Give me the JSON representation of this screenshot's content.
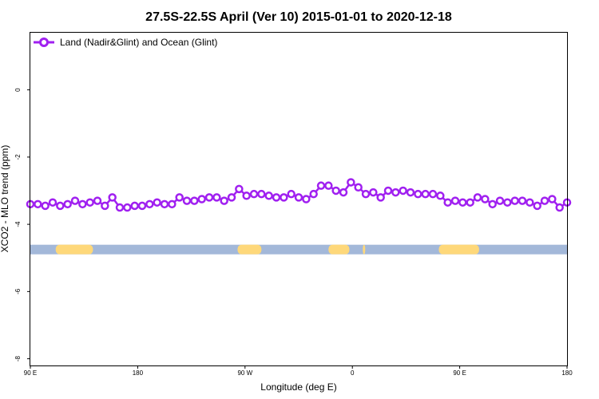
{
  "chart_data": {
    "type": "line",
    "title": "27.5S-22.5S April (Ver 10)   2015-01-01 to 2020-12-18",
    "xlabel": "Longitude (deg E)",
    "ylabel": "XCO2 - MLO trend (ppm)",
    "xlim": [
      90,
      450
    ],
    "ylim": [
      -8.2,
      1.7
    ],
    "x_ticks": [
      {
        "value": 90,
        "label": "90 E"
      },
      {
        "value": 162,
        "label": "180"
      },
      {
        "value": 234,
        "label": "90 W"
      },
      {
        "value": 306,
        "label": "0"
      },
      {
        "value": 378,
        "label": "90 E"
      },
      {
        "value": 450,
        "label": "180"
      }
    ],
    "y_ticks": [
      {
        "value": 0,
        "label": "0"
      },
      {
        "value": -2,
        "label": "-2"
      },
      {
        "value": -4,
        "label": "-4"
      },
      {
        "value": -6,
        "label": "-6"
      },
      {
        "value": -8,
        "label": "-8"
      }
    ],
    "legend_position": "top-left",
    "series": [
      {
        "name": "Land (Nadir&Glint) and Ocean (Glint)",
        "color": "#a020f0",
        "x": [
          90,
          95,
          100,
          105,
          110,
          115,
          120,
          125,
          130,
          135,
          140,
          145,
          150,
          155,
          160,
          165,
          170,
          175,
          180,
          185,
          190,
          195,
          200,
          205,
          210,
          215,
          220,
          225,
          230,
          235,
          240,
          245,
          250,
          255,
          260,
          265,
          270,
          275,
          280,
          285,
          290,
          295,
          300,
          305,
          310,
          315,
          320,
          325,
          330,
          335,
          340,
          345,
          350,
          355,
          360,
          365,
          370,
          375,
          380,
          385,
          390,
          395,
          400,
          405,
          410,
          415,
          420,
          425,
          430,
          435,
          440,
          445,
          450
        ],
        "values": [
          -3.4,
          -3.4,
          -3.45,
          -3.35,
          -3.45,
          -3.4,
          -3.3,
          -3.4,
          -3.35,
          -3.3,
          -3.45,
          -3.2,
          -3.5,
          -3.5,
          -3.45,
          -3.45,
          -3.4,
          -3.35,
          -3.4,
          -3.4,
          -3.2,
          -3.3,
          -3.3,
          -3.25,
          -3.2,
          -3.2,
          -3.3,
          -3.2,
          -2.95,
          -3.15,
          -3.1,
          -3.1,
          -3.15,
          -3.2,
          -3.2,
          -3.1,
          -3.2,
          -3.25,
          -3.1,
          -2.85,
          -2.85,
          -3.0,
          -3.05,
          -2.75,
          -2.9,
          -3.1,
          -3.05,
          -3.2,
          -3.0,
          -3.05,
          -3.0,
          -3.05,
          -3.1,
          -3.1,
          -3.1,
          -3.15,
          -3.35,
          -3.3,
          -3.35,
          -3.35,
          -3.2,
          -3.25,
          -3.4,
          -3.3,
          -3.35,
          -3.3,
          -3.3,
          -3.35,
          -3.45,
          -3.3,
          -3.25,
          -3.5,
          -3.35
        ]
      }
    ],
    "surface_band": {
      "y": -4.75,
      "ocean_color": "#a3b8d9",
      "land_color": "#fed87a",
      "land_segments": [
        [
          107,
          132
        ],
        [
          229,
          245
        ],
        [
          290,
          304
        ],
        [
          313,
          314
        ],
        [
          364,
          391
        ]
      ]
    }
  }
}
